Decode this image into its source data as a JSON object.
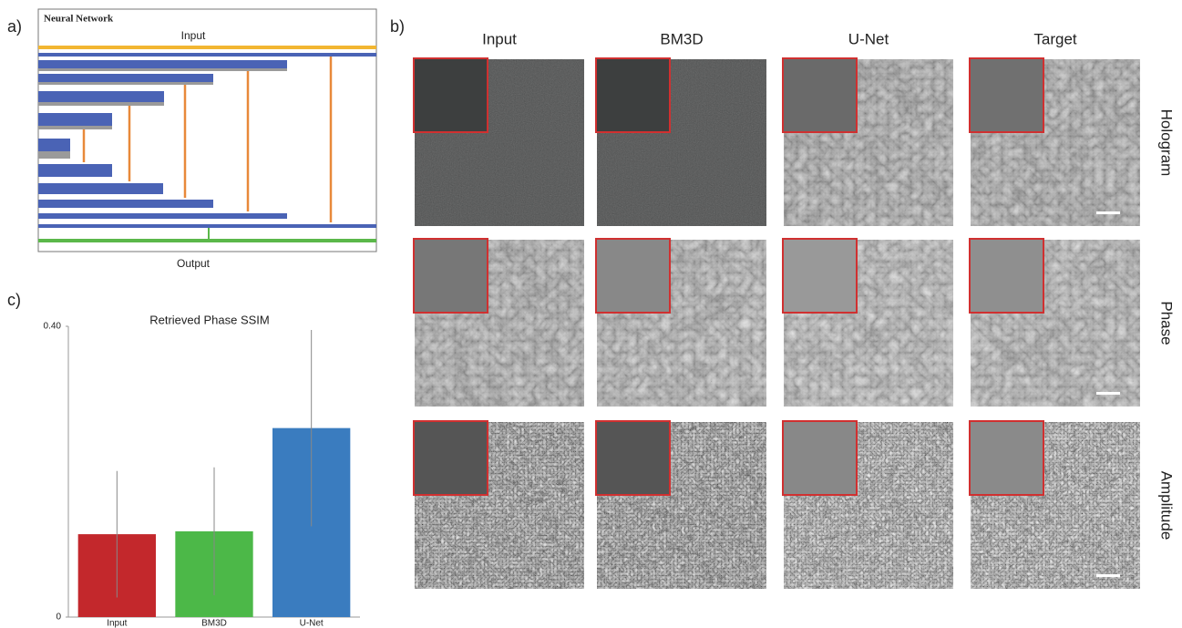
{
  "panel_a": {
    "label": "a)",
    "title": "Neural Network",
    "input": "Input",
    "output": "Output"
  },
  "panel_b": {
    "label": "b)",
    "columns": [
      "Input",
      "BM3D",
      "U-Net",
      "Target"
    ],
    "rows": [
      "Hologram",
      "Phase",
      "Amplitude"
    ]
  },
  "panel_c": {
    "label": "c)"
  },
  "chart_data": {
    "type": "bar",
    "title": "Retrieved Phase SSIM",
    "categories": [
      "Input",
      "BM3D",
      "U-Net"
    ],
    "values": [
      0.114,
      0.118,
      0.26
    ],
    "errors": [
      0.087,
      0.088,
      0.135
    ],
    "colors": [
      "#c3282c",
      "#4cb848",
      "#3a7cbf"
    ],
    "ylim": [
      0,
      0.4
    ],
    "yticks": [
      0,
      {
        "value": 0.4,
        "label": "0.40"
      }
    ],
    "grid": false
  }
}
